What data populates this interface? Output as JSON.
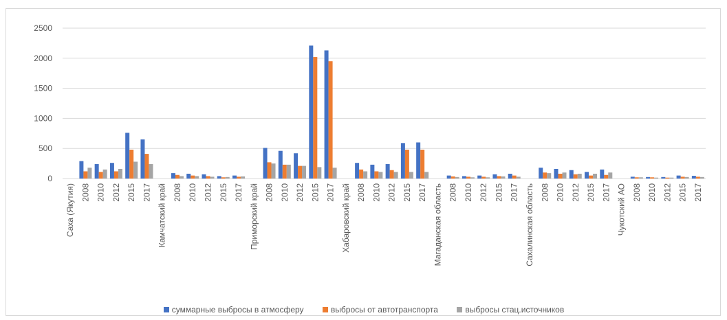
{
  "chart_data": {
    "type": "bar",
    "ylim": [
      0,
      2500
    ],
    "yticks": [
      0,
      500,
      1000,
      1500,
      2000,
      2500
    ],
    "grid": true,
    "legend_position": "bottom",
    "categories": [
      "Саха (Якутия)",
      "2008",
      "2010",
      "2012",
      "2015",
      "2017",
      "Камчатский край",
      "2008",
      "2010",
      "2012",
      "2015",
      "2017",
      "Приморский край",
      "2008",
      "2010",
      "2012",
      "2015",
      "2017",
      "Хабаровский край",
      "2008",
      "2010",
      "2012",
      "2015",
      "2017",
      "Магаданская область",
      "2008",
      "2010",
      "2012",
      "2015",
      "2017",
      "Сахалинская область",
      "2008",
      "2010",
      "2012",
      "2015",
      "2017",
      "Чукотский АО",
      "2008",
      "2010",
      "2012",
      "2015",
      "2017"
    ],
    "series": [
      {
        "name": "суммарные выбросы в атмосферу",
        "color": "#4472C4",
        "values": [
          null,
          290,
          240,
          260,
          760,
          650,
          null,
          90,
          80,
          70,
          40,
          50,
          null,
          510,
          460,
          420,
          2210,
          2130,
          null,
          260,
          230,
          240,
          590,
          600,
          null,
          50,
          40,
          50,
          70,
          80,
          null,
          180,
          160,
          140,
          110,
          150,
          null,
          30,
          25,
          25,
          50,
          45
        ]
      },
      {
        "name": "выбросы от автотранспорта",
        "color": "#ED7D31",
        "values": [
          null,
          120,
          110,
          120,
          480,
          410,
          null,
          60,
          50,
          40,
          20,
          30,
          null,
          270,
          230,
          210,
          2020,
          1950,
          null,
          150,
          120,
          140,
          480,
          480,
          null,
          35,
          30,
          30,
          40,
          50,
          null,
          100,
          80,
          70,
          50,
          60,
          null,
          20,
          20,
          15,
          30,
          30
        ]
      },
      {
        "name": "выбросы стац.источников",
        "color": "#A5A5A5",
        "values": [
          null,
          180,
          150,
          160,
          280,
          240,
          null,
          40,
          40,
          30,
          25,
          35,
          null,
          250,
          230,
          210,
          190,
          180,
          null,
          120,
          110,
          110,
          110,
          110,
          null,
          25,
          20,
          20,
          35,
          30,
          null,
          90,
          100,
          80,
          80,
          100,
          null,
          20,
          15,
          15,
          25,
          25
        ]
      }
    ]
  }
}
